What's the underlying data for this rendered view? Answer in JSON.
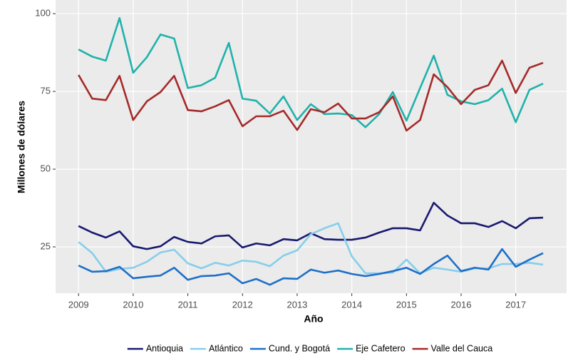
{
  "chart_data": {
    "type": "line",
    "xlabel": "Año",
    "ylabel": "Millones de dólares",
    "x": [
      2009,
      2009.25,
      2009.5,
      2009.75,
      2010,
      2010.25,
      2010.5,
      2010.75,
      2011,
      2011.25,
      2011.5,
      2011.75,
      2012,
      2012.25,
      2012.5,
      2012.75,
      2013,
      2013.25,
      2013.5,
      2013.75,
      2014,
      2014.25,
      2014.5,
      2014.75,
      2015,
      2015.25,
      2015.5,
      2015.75,
      2016,
      2016.25,
      2016.5,
      2016.75,
      2017,
      2017.25,
      2017.5
    ],
    "series": [
      {
        "name": "Antioquia",
        "color": "#191970",
        "values": [
          31.7,
          29.6,
          28,
          30,
          25.2,
          24.3,
          25.2,
          28.2,
          26.6,
          26.1,
          28.4,
          28.7,
          24.8,
          26.1,
          25.5,
          27.5,
          27.1,
          29.4,
          27.5,
          27.3,
          27.3,
          28,
          29.6,
          31,
          31,
          30.3,
          39.2,
          35.1,
          32.6,
          32.6,
          31.4,
          33.3,
          31,
          34.2,
          34.4
        ]
      },
      {
        "name": "Atlántico",
        "color": "#87ceeb",
        "values": [
          26.6,
          23,
          17,
          17.9,
          18.3,
          20.2,
          23.2,
          24.1,
          19.7,
          18.1,
          19.9,
          19,
          20.6,
          20.2,
          18.8,
          22.2,
          23.9,
          29.1,
          31,
          32.6,
          22,
          16.5,
          16.5,
          16.7,
          20.9,
          16.5,
          18.3,
          17.7,
          17,
          18.1,
          18.1,
          19.5,
          19.5,
          19.9,
          19.3
        ]
      },
      {
        "name": "Cund. y Bogotá",
        "color": "#1e6fc8",
        "values": [
          19,
          17,
          17.2,
          18.6,
          14.9,
          15.4,
          15.8,
          18.3,
          14.4,
          15.6,
          15.8,
          16.5,
          13.3,
          14.7,
          12.8,
          14.9,
          14.7,
          17.7,
          16.7,
          17.4,
          16.3,
          15.6,
          16.3,
          17.2,
          18.3,
          16.3,
          19.5,
          22.2,
          17.2,
          18.3,
          17.7,
          24.3,
          18.6,
          20.9,
          23
        ]
      },
      {
        "name": "Eje Cafetero",
        "color": "#20b2aa",
        "values": [
          88.5,
          86.2,
          84.9,
          98.6,
          81,
          86,
          93.3,
          92,
          76.1,
          77,
          79.4,
          90.6,
          72.7,
          72,
          67.9,
          73.4,
          65.8,
          70.9,
          67.7,
          67.9,
          67.4,
          63.5,
          67.7,
          74.8,
          65.6,
          76.1,
          86.5,
          73.9,
          71.8,
          70.9,
          72.2,
          75.9,
          65.1,
          75.5,
          77.5
        ]
      },
      {
        "name": "Valle del Cauca",
        "color": "#a52a2a",
        "values": [
          80.3,
          72.7,
          72.2,
          80,
          65.8,
          71.8,
          74.8,
          80,
          69,
          68.6,
          70.2,
          72.2,
          63.8,
          67,
          67,
          68.8,
          62.6,
          69.3,
          68.3,
          71.1,
          66.3,
          66.3,
          68.3,
          73.4,
          62.4,
          65.8,
          80.5,
          76.4,
          70.9,
          75.5,
          77,
          84.9,
          74.5,
          82.6,
          84.2
        ]
      }
    ],
    "xlim": [
      2008.58,
      2017.93
    ],
    "xticks": [
      2009,
      2010,
      2011,
      2012,
      2013,
      2014,
      2015,
      2016,
      2017
    ],
    "ylim": [
      10.1,
      104.4
    ],
    "yticks": [
      25,
      50,
      75,
      100
    ],
    "grid": true,
    "legend": "bottom"
  }
}
